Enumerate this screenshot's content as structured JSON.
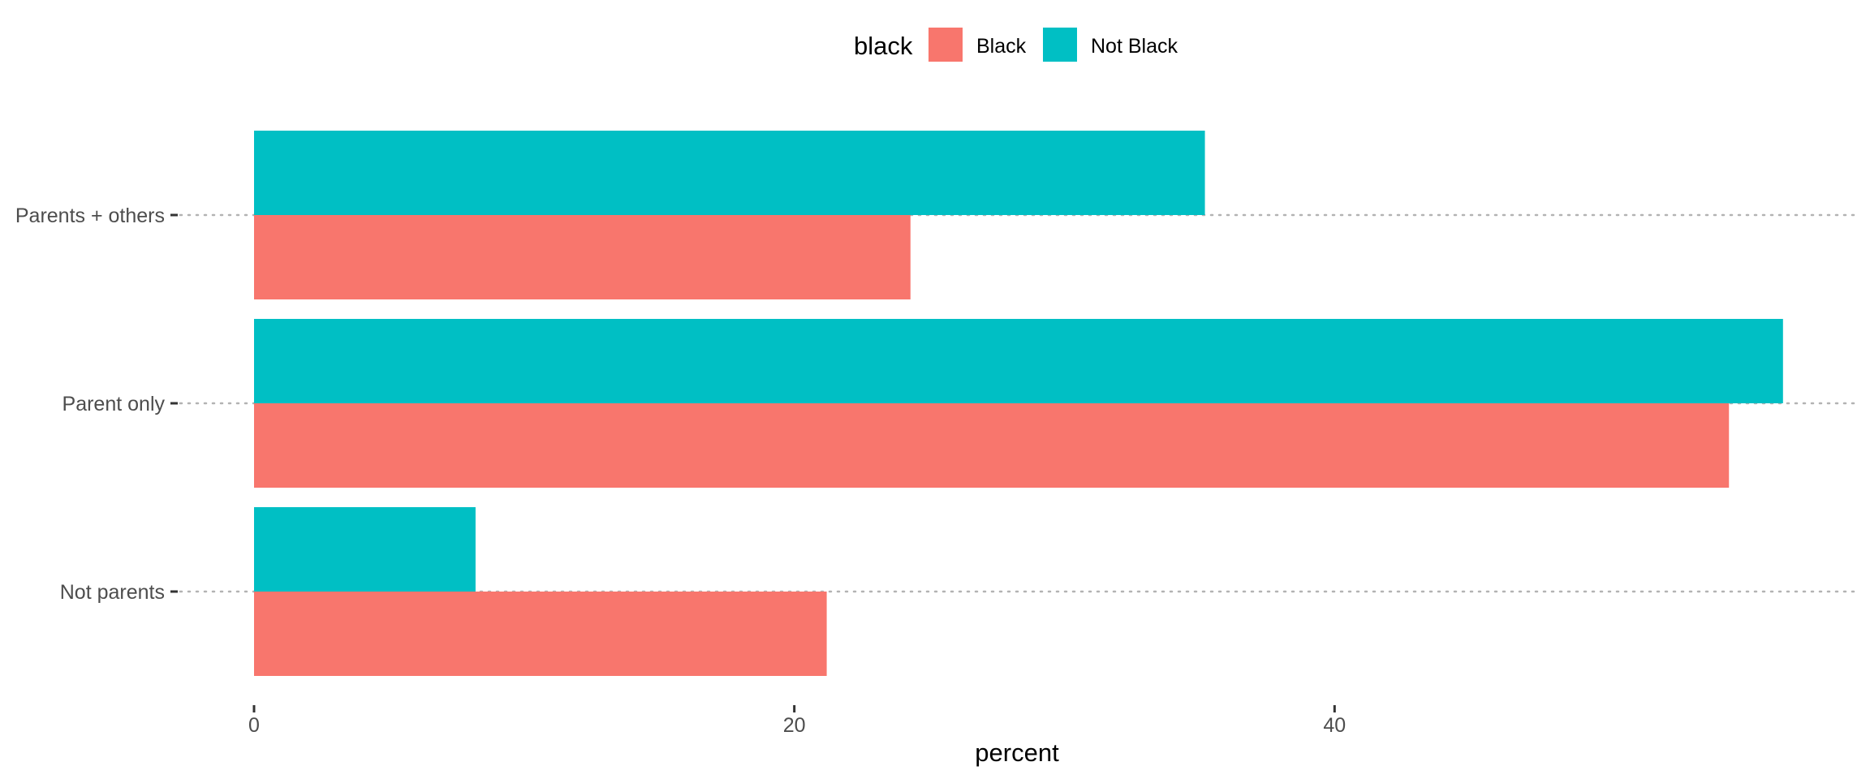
{
  "chart_data": {
    "type": "bar",
    "orientation": "horizontal",
    "title": "",
    "xlabel": "percent",
    "ylabel": "",
    "xlim": [
      0,
      59.4
    ],
    "x_ticks": [
      0,
      20,
      40
    ],
    "categories": [
      "Not parents",
      "Parent only",
      "Parents + others"
    ],
    "legend": {
      "title": "black",
      "position": "top"
    },
    "series": [
      {
        "name": "Black",
        "color": "#F8766D",
        "values": [
          21.2,
          54.6,
          24.3
        ]
      },
      {
        "name": "Not Black",
        "color": "#00BFC4",
        "values": [
          8.2,
          56.6,
          35.2
        ]
      }
    ],
    "grid": {
      "major_y": "dotted",
      "major_x": false
    }
  }
}
